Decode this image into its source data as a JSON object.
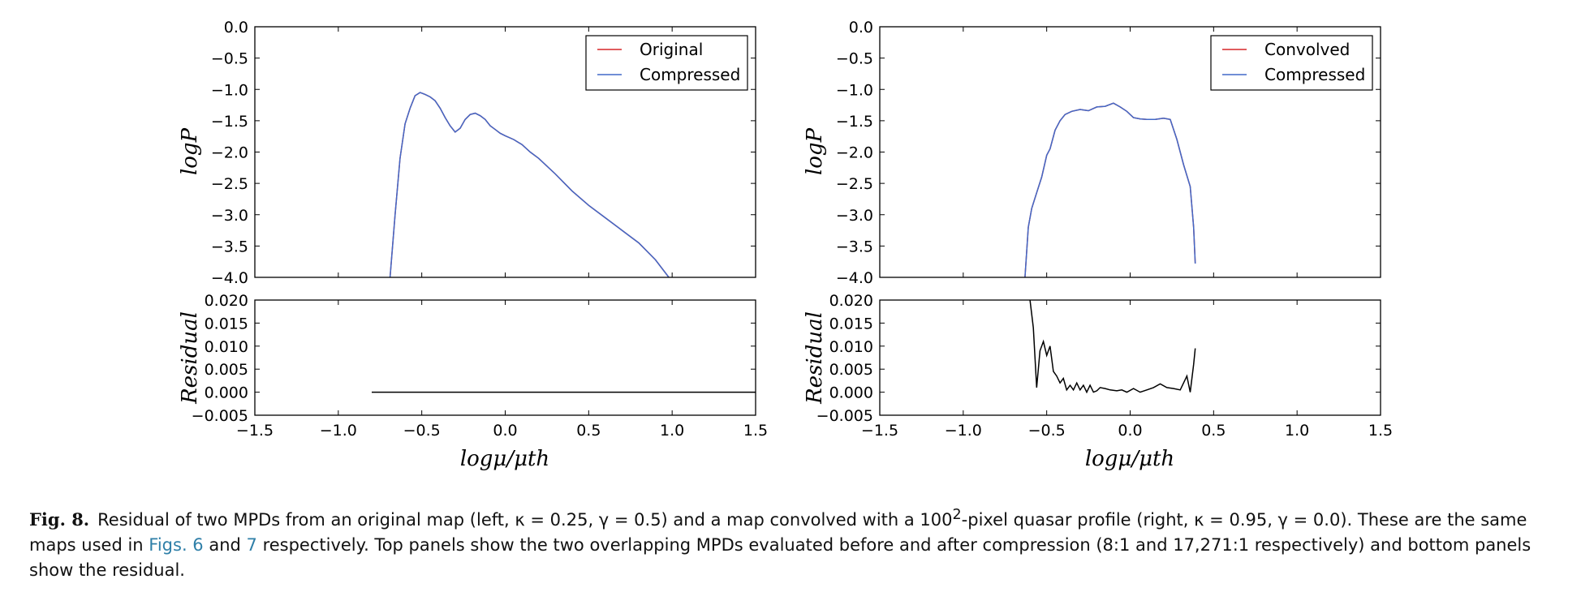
{
  "chart_data": [
    {
      "type": "line",
      "panel": "left-top",
      "ylabel": "logP",
      "xlim": [
        -1.5,
        1.5
      ],
      "ylim": [
        -4.0,
        0.0
      ],
      "xticks": [
        "−1.5",
        "−1.0",
        "−0.5",
        "0.0",
        "0.5",
        "1.0",
        "1.5"
      ],
      "yticks": [
        "0.0",
        "−0.5",
        "−1.0",
        "−1.5",
        "−2.0",
        "−2.5",
        "−3.0",
        "−3.5",
        "−4.0"
      ],
      "legend_position": "top-right",
      "series": [
        {
          "name": "Original",
          "color": "#d62728",
          "x": [
            -0.69,
            -0.66,
            -0.63,
            -0.6,
            -0.57,
            -0.54,
            -0.51,
            -0.48,
            -0.45,
            -0.42,
            -0.39,
            -0.36,
            -0.33,
            -0.3,
            -0.27,
            -0.24,
            -0.21,
            -0.18,
            -0.15,
            -0.12,
            -0.09,
            -0.06,
            -0.03,
            0.0,
            0.05,
            0.1,
            0.15,
            0.2,
            0.3,
            0.4,
            0.5,
            0.6,
            0.7,
            0.8,
            0.9,
            0.98
          ],
          "y": [
            -4.0,
            -3.0,
            -2.1,
            -1.55,
            -1.3,
            -1.1,
            -1.05,
            -1.08,
            -1.12,
            -1.18,
            -1.3,
            -1.45,
            -1.58,
            -1.68,
            -1.62,
            -1.48,
            -1.4,
            -1.38,
            -1.42,
            -1.48,
            -1.58,
            -1.64,
            -1.7,
            -1.74,
            -1.8,
            -1.88,
            -2.0,
            -2.1,
            -2.35,
            -2.62,
            -2.85,
            -3.05,
            -3.25,
            -3.45,
            -3.72,
            -4.0
          ]
        },
        {
          "name": "Compressed",
          "color": "#4169c8",
          "x": [
            -0.69,
            -0.66,
            -0.63,
            -0.6,
            -0.57,
            -0.54,
            -0.51,
            -0.48,
            -0.45,
            -0.42,
            -0.39,
            -0.36,
            -0.33,
            -0.3,
            -0.27,
            -0.24,
            -0.21,
            -0.18,
            -0.15,
            -0.12,
            -0.09,
            -0.06,
            -0.03,
            0.0,
            0.05,
            0.1,
            0.15,
            0.2,
            0.3,
            0.4,
            0.5,
            0.6,
            0.7,
            0.8,
            0.9,
            0.98
          ],
          "y": [
            -4.0,
            -3.0,
            -2.1,
            -1.55,
            -1.3,
            -1.1,
            -1.05,
            -1.08,
            -1.12,
            -1.18,
            -1.3,
            -1.45,
            -1.58,
            -1.68,
            -1.62,
            -1.48,
            -1.4,
            -1.38,
            -1.42,
            -1.48,
            -1.58,
            -1.64,
            -1.7,
            -1.74,
            -1.8,
            -1.88,
            -2.0,
            -2.1,
            -2.35,
            -2.62,
            -2.85,
            -3.05,
            -3.25,
            -3.45,
            -3.72,
            -4.0
          ]
        }
      ]
    },
    {
      "type": "line",
      "panel": "left-bottom",
      "xlabel": "logμ/μth",
      "ylabel": "Residual",
      "xlim": [
        -1.5,
        1.5
      ],
      "ylim": [
        -0.005,
        0.02
      ],
      "xticks": [
        "−1.5",
        "−1.0",
        "−0.5",
        "0.0",
        "0.5",
        "1.0",
        "1.5"
      ],
      "yticks": [
        "0.020",
        "0.015",
        "0.010",
        "0.005",
        "0.000",
        "−0.005"
      ],
      "series": [
        {
          "color": "#000000",
          "x": [
            -0.8,
            1.5
          ],
          "y": [
            0.0,
            0.0
          ]
        }
      ]
    },
    {
      "type": "line",
      "panel": "right-top",
      "ylabel": "logP",
      "xlim": [
        -1.5,
        1.5
      ],
      "ylim": [
        -4.0,
        0.0
      ],
      "xticks": [
        "−1.5",
        "−1.0",
        "−0.5",
        "0.0",
        "0.5",
        "1.0",
        "1.5"
      ],
      "yticks": [
        "0.0",
        "−0.5",
        "−1.0",
        "−1.5",
        "−2.0",
        "−2.5",
        "−3.0",
        "−3.5",
        "−4.0"
      ],
      "legend_position": "top-right",
      "series": [
        {
          "name": "Convolved",
          "color": "#d62728",
          "x": [
            -0.63,
            -0.61,
            -0.59,
            -0.56,
            -0.53,
            -0.5,
            -0.48,
            -0.45,
            -0.42,
            -0.39,
            -0.35,
            -0.3,
            -0.25,
            -0.2,
            -0.15,
            -0.1,
            -0.06,
            -0.02,
            0.02,
            0.06,
            0.1,
            0.15,
            0.2,
            0.24,
            0.28,
            0.32,
            0.36,
            0.38,
            0.39
          ],
          "y": [
            -4.0,
            -3.2,
            -2.9,
            -2.65,
            -2.4,
            -2.05,
            -1.95,
            -1.65,
            -1.5,
            -1.4,
            -1.35,
            -1.32,
            -1.34,
            -1.28,
            -1.27,
            -1.22,
            -1.28,
            -1.35,
            -1.45,
            -1.47,
            -1.48,
            -1.48,
            -1.46,
            -1.48,
            -1.8,
            -2.2,
            -2.55,
            -3.2,
            -3.78
          ]
        },
        {
          "name": "Compressed",
          "color": "#4169c8",
          "x": [
            -0.63,
            -0.61,
            -0.59,
            -0.56,
            -0.53,
            -0.5,
            -0.48,
            -0.45,
            -0.42,
            -0.39,
            -0.35,
            -0.3,
            -0.25,
            -0.2,
            -0.15,
            -0.1,
            -0.06,
            -0.02,
            0.02,
            0.06,
            0.1,
            0.15,
            0.2,
            0.24,
            0.28,
            0.32,
            0.36,
            0.38,
            0.39
          ],
          "y": [
            -4.0,
            -3.2,
            -2.9,
            -2.65,
            -2.4,
            -2.05,
            -1.95,
            -1.65,
            -1.5,
            -1.4,
            -1.35,
            -1.32,
            -1.34,
            -1.28,
            -1.27,
            -1.22,
            -1.28,
            -1.35,
            -1.45,
            -1.47,
            -1.48,
            -1.48,
            -1.46,
            -1.48,
            -1.8,
            -2.2,
            -2.55,
            -3.2,
            -3.78
          ]
        }
      ]
    },
    {
      "type": "line",
      "panel": "right-bottom",
      "xlabel": "logμ/μth",
      "ylabel": "Residual",
      "xlim": [
        -1.5,
        1.5
      ],
      "ylim": [
        -0.005,
        0.02
      ],
      "xticks": [
        "−1.5",
        "−1.0",
        "−0.5",
        "0.0",
        "0.5",
        "1.0",
        "1.5"
      ],
      "yticks": [
        "0.020",
        "0.015",
        "0.010",
        "0.005",
        "0.000",
        "−0.005"
      ],
      "series": [
        {
          "color": "#000000",
          "x": [
            -0.6,
            -0.58,
            -0.56,
            -0.54,
            -0.52,
            -0.5,
            -0.48,
            -0.46,
            -0.44,
            -0.42,
            -0.4,
            -0.38,
            -0.36,
            -0.34,
            -0.32,
            -0.3,
            -0.28,
            -0.26,
            -0.24,
            -0.22,
            -0.2,
            -0.18,
            -0.15,
            -0.12,
            -0.08,
            -0.05,
            -0.02,
            0.02,
            0.06,
            0.1,
            0.14,
            0.18,
            0.22,
            0.26,
            0.3,
            0.34,
            0.36,
            0.38,
            0.39
          ],
          "y": [
            0.02,
            0.014,
            0.001,
            0.009,
            0.011,
            0.008,
            0.01,
            0.0045,
            0.0035,
            0.002,
            0.003,
            0.0005,
            0.0015,
            0.0005,
            0.002,
            0.0005,
            0.0015,
            0.0,
            0.0015,
            0.0,
            0.0003,
            0.001,
            0.0008,
            0.0005,
            0.0003,
            0.0005,
            0.0,
            0.0008,
            0.0,
            0.0005,
            0.001,
            0.0018,
            0.001,
            0.0008,
            0.0005,
            0.0035,
            0.0,
            0.006,
            0.0095
          ]
        }
      ]
    }
  ],
  "caption": {
    "label": "Fig. 8.",
    "part1": "Residual of two MPDs from an original map (left, κ = 0.25, γ = 0.5) and a map convolved with a 100",
    "sup": "2",
    "part2": "-pixel quasar profile (right, κ = 0.95, γ = 0.0). These are the same maps used in ",
    "link1": "Figs. 6",
    "part3": " and ",
    "link2": "7",
    "part4": " respectively. Top panels show the two overlapping MPDs evaluated before and after compression (8:1 and 17,271:1 respectively) and bottom panels show the residual."
  }
}
